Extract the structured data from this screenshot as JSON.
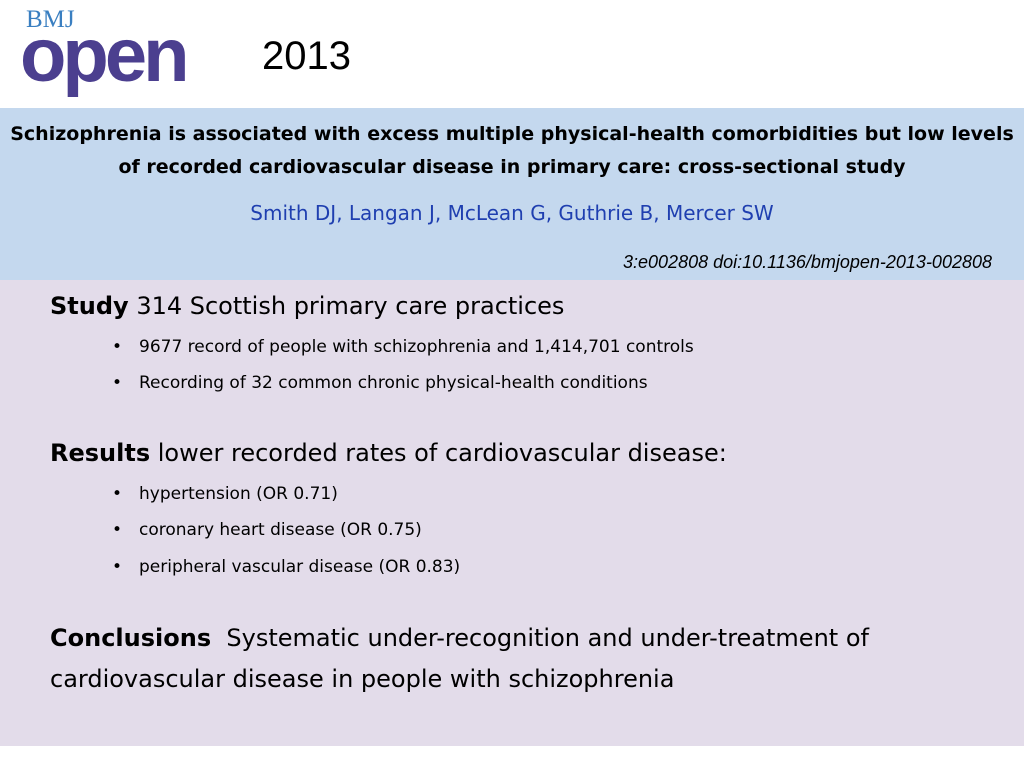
{
  "logo": {
    "brand_small": "BMJ",
    "brand_large": "open"
  },
  "year": "2013",
  "paper": {
    "title": "Schizophrenia is associated with excess multiple physical-health comorbidities but low levels of recorded cardiovascular disease in primary care: cross-sectional study",
    "authors": "Smith DJ, Langan J, McLean G,  Guthrie B, Mercer SW",
    "citation": "3:e002808 doi:10.1136/bmjopen-2013-002808"
  },
  "study": {
    "heading": "Study",
    "text": "314 Scottish primary care practices",
    "bullets": [
      "9677 record of people with schizophrenia and 1,414,701 controls",
      "Recording of 32 common chronic physical-health conditions"
    ]
  },
  "results": {
    "heading": "Results",
    "text": "lower recorded rates of cardiovascular disease:",
    "bullets": [
      "hypertension (OR 0.71)",
      "coronary heart disease (OR 0.75)",
      "peripheral vascular disease (OR 0.83)"
    ]
  },
  "conclusions": {
    "heading": "Conclusions",
    "text": "Systematic under-recognition and under-treatment of cardiovascular disease in people with schizophrenia"
  },
  "bullet_glyph": "•",
  "colors": {
    "header_band": "#c4d8ee",
    "body_band": "#e3dcea",
    "logo_bmj": "#3a7fc1",
    "logo_open": "#4b3f8f",
    "authors": "#1f3fb0"
  }
}
